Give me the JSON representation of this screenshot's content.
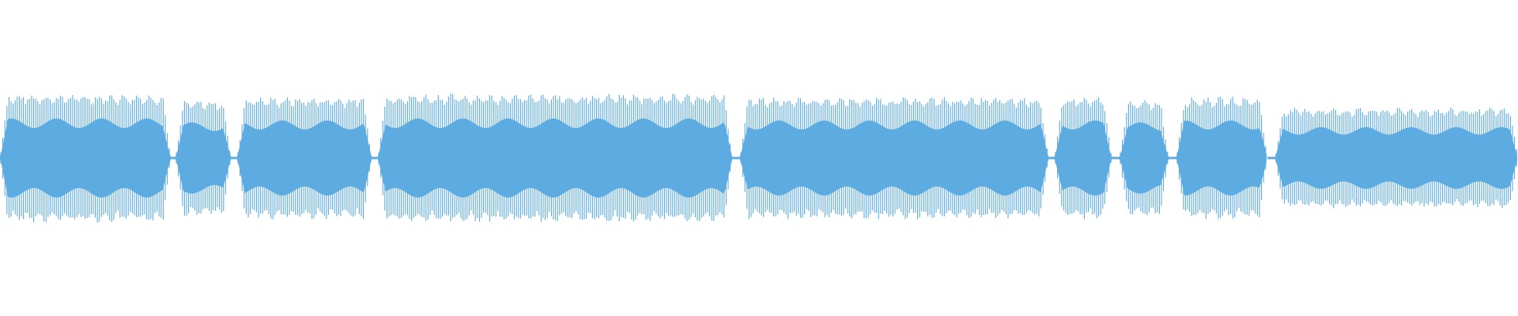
{
  "waveform": {
    "type": "audio-waveform",
    "color": "#5dabe1",
    "background": "#ffffff"
  }
}
